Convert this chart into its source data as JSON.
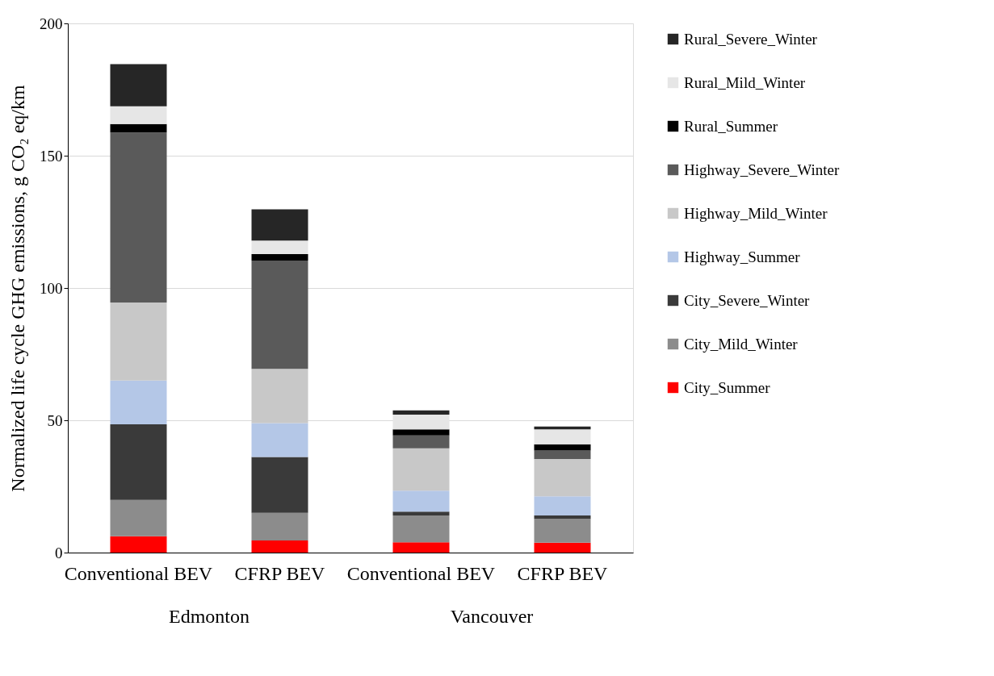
{
  "chart_data": {
    "type": "bar",
    "stacked": true,
    "ylabel": "Normalized life cycle GHG emissions, g CO₂ eq/km",
    "categories": [
      "Conventional BEV",
      "CFRP BEV",
      "Conventional BEV",
      "CFRP BEV"
    ],
    "annotations": [
      "Edmonton",
      "Vancouver"
    ],
    "ylim": [
      0,
      200
    ],
    "yticks": [
      0,
      50,
      100,
      150,
      200
    ],
    "grid": "y",
    "legend": "right",
    "series": [
      {
        "name": "City_Summer",
        "color": "#ff0000",
        "values": [
          6.2,
          4.6,
          3.9,
          3.7
        ]
      },
      {
        "name": "City_Mild_Winter",
        "color": "#8c8c8c",
        "values": [
          13.7,
          10.4,
          10.1,
          9.0
        ]
      },
      {
        "name": "City_Severe_Winter",
        "color": "#3a3a3a",
        "values": [
          28.6,
          21.1,
          1.5,
          1.3
        ]
      },
      {
        "name": "Highway_Summer",
        "color": "#b4c7e7",
        "values": [
          16.5,
          12.8,
          7.9,
          7.3
        ]
      },
      {
        "name": "Highway_Mild_Winter",
        "color": "#c8c8c8",
        "values": [
          29.5,
          20.5,
          16.0,
          14.1
        ]
      },
      {
        "name": "Highway_Severe_Winter",
        "color": "#5a5a5a",
        "values": [
          64.3,
          41.0,
          4.9,
          3.2
        ]
      },
      {
        "name": "Rural_Summer",
        "color": "#000000",
        "values": [
          3.2,
          2.4,
          2.3,
          2.3
        ]
      },
      {
        "name": "Rural_Mild_Winter",
        "color": "#e6e6e6",
        "values": [
          6.7,
          5.1,
          5.5,
          5.7
        ]
      },
      {
        "name": "Rural_Severe_Winter",
        "color": "#262626",
        "values": [
          15.9,
          11.8,
          1.6,
          1.0
        ]
      }
    ]
  }
}
